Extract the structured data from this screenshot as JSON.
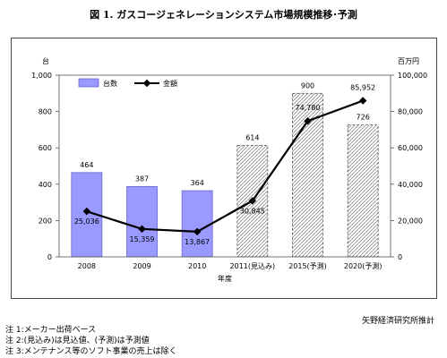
{
  "title": "図 1. ガスコージェネレーションシステム市場規模推移･予測",
  "source": "矢野経済研究所推計",
  "notes": [
    "注 1:メーカー出荷ベース",
    "注 2:(見込み)は見込値、(予測)は予測値",
    "注 3:メンテナンス等のソフト事業の売上は除く"
  ],
  "colors": {
    "bar": "#9999ff",
    "line": "#000000",
    "forecast_fill": "#d9d9d9"
  },
  "chart_data": {
    "type": "bar",
    "categories": [
      "2008",
      "2009",
      "2010",
      "2011(見込み)",
      "2015(予測)",
      "2020(予測)"
    ],
    "xlabel": "年度",
    "left_axis_unit": "台",
    "right_axis_unit": "百万円",
    "left_ylim": [
      0,
      1000
    ],
    "right_ylim": [
      0,
      100000
    ],
    "left_ticks": [
      "0",
      "200",
      "400",
      "600",
      "800",
      "1,000"
    ],
    "right_ticks": [
      "0",
      "20,000",
      "40,000",
      "60,000",
      "80,000",
      "100,000"
    ],
    "legend_position": "top-left",
    "series": [
      {
        "name": "台数",
        "type": "bar",
        "axis": "left",
        "values": [
          464,
          387,
          364,
          614,
          900,
          726
        ],
        "labels": [
          "464",
          "387",
          "364",
          "614",
          "900",
          "726"
        ],
        "forecast": [
          false,
          false,
          false,
          true,
          true,
          true
        ]
      },
      {
        "name": "金額",
        "type": "line",
        "axis": "right",
        "values": [
          25036,
          15359,
          13867,
          30845,
          74780,
          85952
        ],
        "labels": [
          "25,036",
          "15,359",
          "13,867",
          "30,845",
          "74,780",
          "85,952"
        ]
      }
    ]
  }
}
